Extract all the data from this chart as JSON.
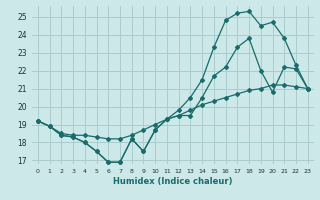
{
  "xlabel": "Humidex (Indice chaleur)",
  "bg_color": "#cce8e8",
  "grid_color": "#aacccc",
  "line_color": "#1a6b6b",
  "xlim": [
    -0.5,
    23.5
  ],
  "ylim": [
    16.8,
    25.6
  ],
  "xticks": [
    0,
    1,
    2,
    3,
    4,
    5,
    6,
    7,
    8,
    9,
    10,
    11,
    12,
    13,
    14,
    15,
    16,
    17,
    18,
    19,
    20,
    21,
    22,
    23
  ],
  "yticks": [
    17,
    18,
    19,
    20,
    21,
    22,
    23,
    24,
    25
  ],
  "line1_x": [
    0,
    1,
    2,
    3,
    4,
    5,
    6,
    7,
    8,
    9,
    10,
    11,
    12,
    13,
    14,
    15,
    16,
    17,
    18,
    19,
    20,
    21,
    22,
    23
  ],
  "line1_y": [
    19.2,
    18.9,
    18.4,
    18.3,
    18.0,
    17.5,
    16.9,
    16.9,
    18.2,
    17.5,
    18.7,
    19.3,
    19.5,
    19.5,
    20.5,
    21.7,
    22.2,
    23.3,
    23.8,
    22.0,
    20.8,
    22.2,
    22.1,
    21.0
  ],
  "line2_x": [
    0,
    1,
    2,
    3,
    4,
    5,
    6,
    7,
    8,
    9,
    10,
    11,
    12,
    13,
    14,
    15,
    16,
    17,
    18,
    19,
    20,
    21,
    22,
    23
  ],
  "line2_y": [
    19.2,
    18.9,
    18.4,
    18.3,
    18.0,
    17.5,
    16.9,
    16.9,
    18.2,
    17.5,
    18.7,
    19.3,
    19.8,
    20.5,
    21.5,
    23.3,
    24.8,
    25.2,
    25.3,
    24.5,
    24.7,
    23.8,
    22.3,
    21.0
  ],
  "line3_x": [
    0,
    1,
    2,
    3,
    4,
    5,
    6,
    7,
    8,
    9,
    10,
    11,
    12,
    13,
    14,
    15,
    16,
    17,
    18,
    19,
    20,
    21,
    22,
    23
  ],
  "line3_y": [
    19.2,
    18.9,
    18.5,
    18.4,
    18.4,
    18.3,
    18.2,
    18.2,
    18.4,
    18.7,
    19.0,
    19.3,
    19.5,
    19.8,
    20.1,
    20.3,
    20.5,
    20.7,
    20.9,
    21.0,
    21.2,
    21.2,
    21.1,
    21.0
  ]
}
